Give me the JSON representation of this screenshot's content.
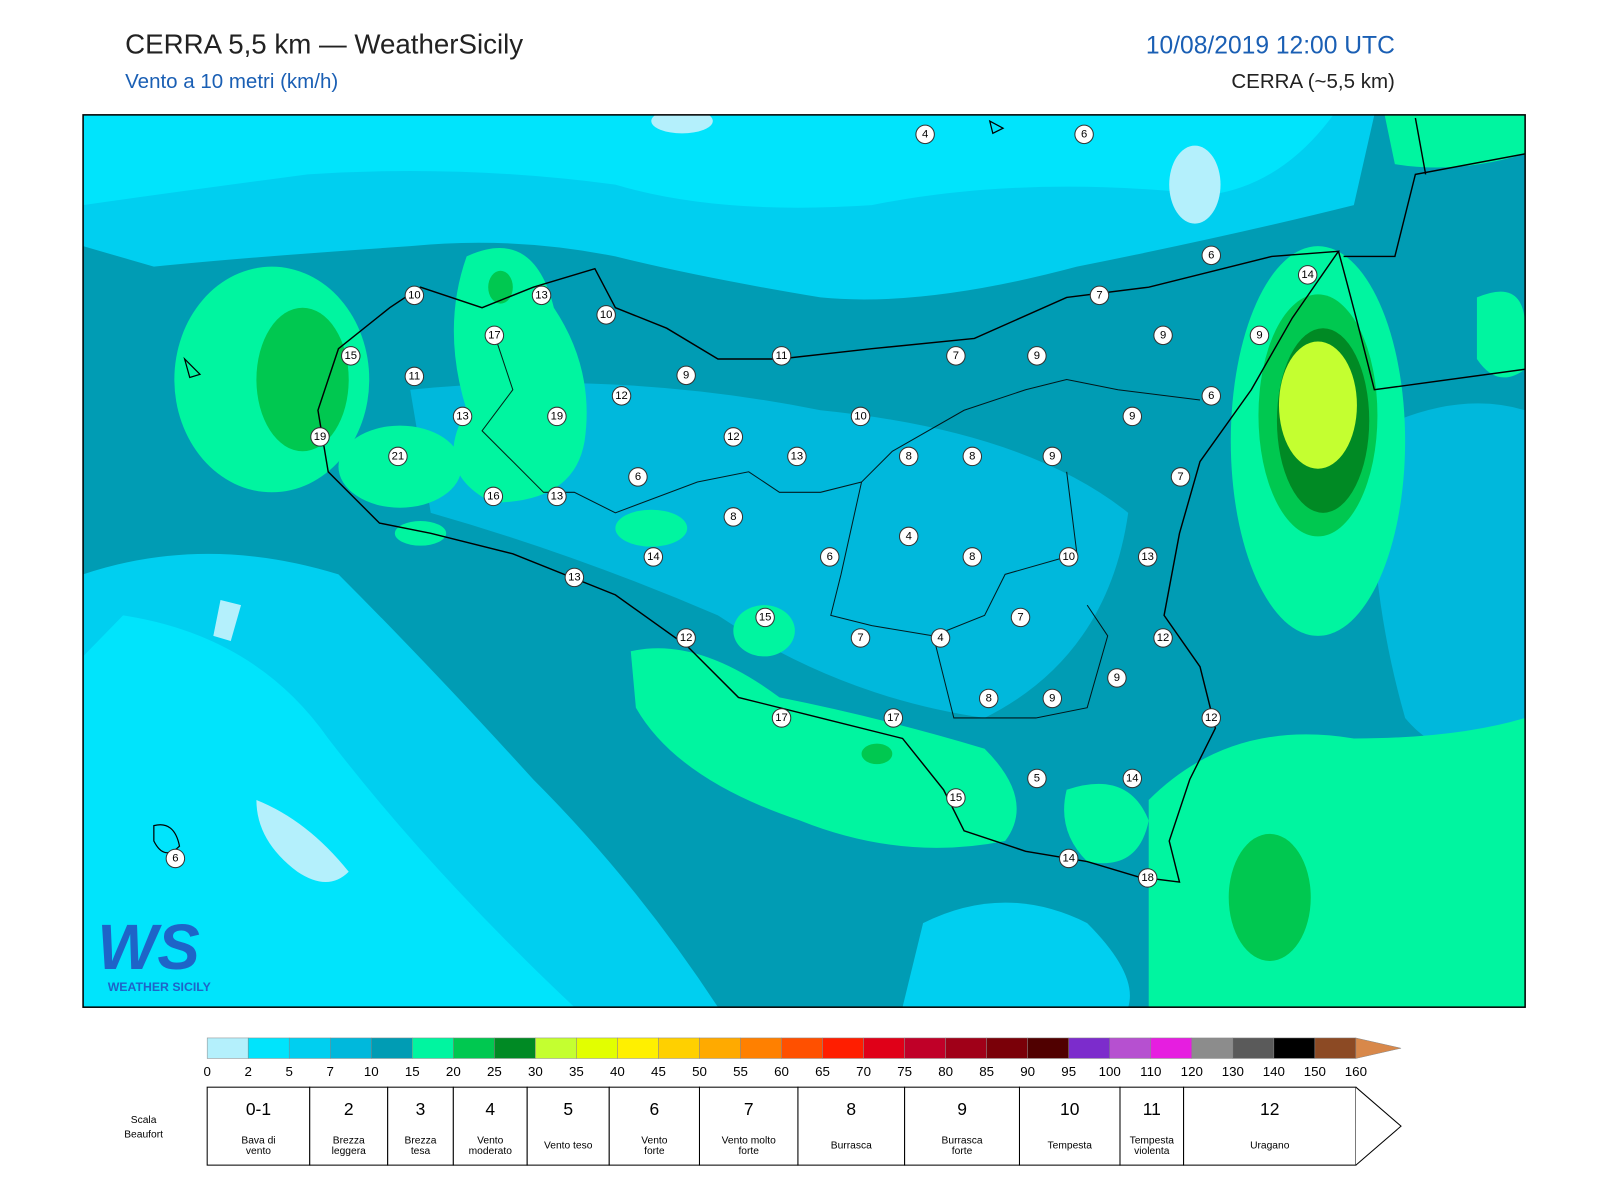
{
  "header": {
    "title": "CERRA 5,5 km — WeatherSicily",
    "subtitle": "Vento a 10 metri (km/h)",
    "datetime": "10/08/2019 12:00 UTC",
    "model": "CERRA (~5,5 km)"
  },
  "logo": {
    "mark": "WS",
    "name": "WEATHER SICILY"
  },
  "stations": [
    4,
    6,
    6,
    14,
    10,
    13,
    7,
    10,
    17,
    9,
    9,
    15,
    11,
    7,
    9,
    11,
    9,
    12,
    6,
    13,
    19,
    10,
    9,
    19,
    12,
    21,
    13,
    8,
    8,
    9,
    6,
    7,
    16,
    13,
    8,
    4,
    14,
    6,
    8,
    10,
    13,
    13,
    15,
    7,
    12,
    7,
    4,
    12,
    9,
    8,
    9,
    17,
    17,
    12,
    5,
    14,
    15,
    14,
    18,
    6
  ],
  "colorbar": {
    "ticks": [
      0,
      2,
      5,
      7,
      10,
      15,
      20,
      25,
      30,
      35,
      40,
      45,
      50,
      55,
      60,
      65,
      70,
      75,
      80,
      85,
      90,
      95,
      100,
      110,
      120,
      130,
      140,
      150,
      160
    ],
    "colors": [
      "#b4f0fc",
      "#00e4fc",
      "#00cff0",
      "#00b8dc",
      "#009cb4",
      "#00f5a0",
      "#00c850",
      "#008a24",
      "#c4ff30",
      "#e2ff00",
      "#fff000",
      "#ffd000",
      "#ffaa00",
      "#ff8000",
      "#ff5000",
      "#ff1e00",
      "#e00018",
      "#c00028",
      "#a00018",
      "#7a0008",
      "#500000",
      "#7c2ccc",
      "#b650d0",
      "#e61ee0",
      "#8c8c8c",
      "#5a5a5a",
      "#000000",
      "#8c4a24",
      "#d8884a"
    ]
  },
  "beaufort": {
    "label": [
      "Scala",
      "Beaufort"
    ],
    "levels": [
      {
        "force": "0-1",
        "desc": [
          "Bava di",
          "vento"
        ]
      },
      {
        "force": "2",
        "desc": [
          "Brezza",
          "leggera"
        ]
      },
      {
        "force": "3",
        "desc": [
          "Brezza",
          "tesa"
        ]
      },
      {
        "force": "4",
        "desc": [
          "Vento",
          "moderato"
        ]
      },
      {
        "force": "5",
        "desc": [
          "Vento teso"
        ]
      },
      {
        "force": "6",
        "desc": [
          "Vento",
          "forte"
        ]
      },
      {
        "force": "7",
        "desc": [
          "Vento molto",
          "forte"
        ]
      },
      {
        "force": "8",
        "desc": [
          "Burrasca"
        ]
      },
      {
        "force": "9",
        "desc": [
          "Burrasca",
          "forte"
        ]
      },
      {
        "force": "10",
        "desc": [
          "Tempesta"
        ]
      },
      {
        "force": "11",
        "desc": [
          "Tempesta",
          "violenta"
        ]
      },
      {
        "force": "12",
        "desc": [
          "Uragano"
        ]
      }
    ]
  }
}
